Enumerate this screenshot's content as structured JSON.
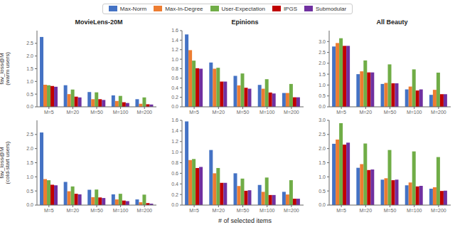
{
  "chart_data": [
    {
      "type": "bar",
      "title": "MovieLens-20M",
      "ylabel": "fav_loss@M\n(warm users)",
      "legend": "top",
      "grid": false,
      "categories": [
        "M=5",
        "M=20",
        "M=50",
        "M=100",
        "M=200"
      ],
      "series": [
        {
          "name": "Max-Norm",
          "color": "#4472c4",
          "values": [
            2.75,
            0.85,
            0.58,
            0.45,
            0.3
          ]
        },
        {
          "name": "Max-In-Degree",
          "color": "#ed7d31",
          "values": [
            0.87,
            0.5,
            0.3,
            0.23,
            0.12
          ]
        },
        {
          "name": "User-Expectation",
          "color": "#70ad47",
          "values": [
            0.85,
            0.68,
            0.57,
            0.43,
            0.37
          ]
        },
        {
          "name": "IPGS",
          "color": "#c00000",
          "values": [
            0.82,
            0.4,
            0.3,
            0.18,
            0.1
          ]
        },
        {
          "name": "Submodular",
          "color": "#7030a0",
          "values": [
            0.79,
            0.37,
            0.27,
            0.15,
            0.09
          ]
        }
      ],
      "ylim": [
        0,
        3.0
      ],
      "yticks": [
        {
          "value": 0,
          "label": "0.0"
        },
        0.5,
        {
          "value": 1,
          "label": "1.0"
        },
        1.5,
        {
          "value": 2,
          "label": "2.0"
        },
        2.5
      ]
    },
    {
      "type": "bar",
      "title": "Epinions",
      "grid": false,
      "categories": [
        "M=5",
        "M=20",
        "M=50",
        "M=100",
        "M=200"
      ],
      "series": [
        {
          "name": "Max-Norm",
          "color": "#4472c4",
          "values": [
            1.52,
            0.93,
            0.65,
            0.46,
            0.29
          ]
        },
        {
          "name": "Max-In-Degree",
          "color": "#ed7d31",
          "values": [
            1.19,
            0.8,
            0.45,
            0.38,
            0.29
          ]
        },
        {
          "name": "User-Expectation",
          "color": "#70ad47",
          "values": [
            0.97,
            0.82,
            0.7,
            0.58,
            0.48
          ]
        },
        {
          "name": "IPGS",
          "color": "#c00000",
          "values": [
            0.81,
            0.53,
            0.4,
            0.3,
            0.2
          ]
        },
        {
          "name": "Submodular",
          "color": "#7030a0",
          "values": [
            0.8,
            0.53,
            0.38,
            0.28,
            0.2
          ]
        }
      ],
      "ylim": [
        0,
        1.6
      ],
      "yticks": [
        {
          "value": 0,
          "label": "0.0"
        },
        0.2,
        0.4,
        0.6,
        0.8,
        {
          "value": 1,
          "label": "1.0"
        },
        1.2,
        1.4,
        1.6
      ]
    },
    {
      "type": "bar",
      "title": "All Beauty",
      "grid": false,
      "categories": [
        "M=5",
        "M=20",
        "M=50",
        "M=100",
        "M=200"
      ],
      "series": [
        {
          "name": "Max-Norm",
          "color": "#4472c4",
          "values": [
            2.77,
            1.5,
            1.05,
            0.8,
            0.55
          ]
        },
        {
          "name": "Max-In-Degree",
          "color": "#ed7d31",
          "values": [
            2.93,
            1.63,
            1.1,
            0.93,
            0.78
          ]
        },
        {
          "name": "User-Expectation",
          "color": "#70ad47",
          "values": [
            3.15,
            2.13,
            1.95,
            1.72,
            1.57
          ]
        },
        {
          "name": "IPGS",
          "color": "#c00000",
          "values": [
            2.8,
            1.58,
            1.08,
            0.75,
            0.58
          ]
        },
        {
          "name": "Submodular",
          "color": "#7030a0",
          "values": [
            2.8,
            1.58,
            1.08,
            0.8,
            0.58
          ]
        }
      ],
      "ylim": [
        0,
        3.5
      ],
      "yticks": [
        {
          "value": 0,
          "label": "0.0"
        },
        0.5,
        {
          "value": 1,
          "label": "1.0"
        },
        1.5,
        {
          "value": 2,
          "label": "2.0"
        },
        2.5,
        {
          "value": 3,
          "label": "3.0"
        }
      ]
    },
    {
      "type": "bar",
      "ylabel": "fav_loss@M\n(cold-start users)",
      "grid": false,
      "categories": [
        "M=5",
        "M=20",
        "M=50",
        "M=100",
        "M=200"
      ],
      "series": [
        {
          "name": "Max-Norm",
          "color": "#4472c4",
          "values": [
            2.57,
            0.82,
            0.54,
            0.38,
            0.2
          ]
        },
        {
          "name": "Max-In-Degree",
          "color": "#ed7d31",
          "values": [
            0.92,
            0.49,
            0.28,
            0.2,
            0.1
          ]
        },
        {
          "name": "User-Expectation",
          "color": "#70ad47",
          "values": [
            0.88,
            0.66,
            0.55,
            0.4,
            0.37
          ]
        },
        {
          "name": "IPGS",
          "color": "#c00000",
          "values": [
            0.72,
            0.4,
            0.27,
            0.16,
            0.07
          ]
        },
        {
          "name": "Submodular",
          "color": "#7030a0",
          "values": [
            0.7,
            0.38,
            0.25,
            0.14,
            0.05
          ]
        }
      ],
      "ylim": [
        0,
        3.0
      ],
      "yticks": [
        {
          "value": 0,
          "label": "0.0"
        },
        0.5,
        {
          "value": 1,
          "label": "1.0"
        },
        1.5,
        {
          "value": 2,
          "label": "2.0"
        },
        2.5
      ]
    },
    {
      "type": "bar",
      "xlabel": "# of selected items",
      "grid": false,
      "categories": [
        "M=5",
        "M=20",
        "M=50",
        "M=100",
        "M=200"
      ],
      "series": [
        {
          "name": "Max-Norm",
          "color": "#4472c4",
          "values": [
            1.58,
            1.04,
            0.6,
            0.38,
            0.25
          ]
        },
        {
          "name": "Max-In-Degree",
          "color": "#ed7d31",
          "values": [
            0.85,
            0.6,
            0.36,
            0.25,
            0.2
          ]
        },
        {
          "name": "User-Expectation",
          "color": "#70ad47",
          "values": [
            0.87,
            0.7,
            0.5,
            0.52,
            0.47
          ]
        },
        {
          "name": "IPGS",
          "color": "#c00000",
          "values": [
            0.7,
            0.42,
            0.27,
            0.19,
            0.12
          ]
        },
        {
          "name": "Submodular",
          "color": "#7030a0",
          "values": [
            0.72,
            0.42,
            0.28,
            0.19,
            0.12
          ]
        }
      ],
      "ylim": [
        0,
        1.6
      ],
      "yticks": [
        {
          "value": 0,
          "label": "0.0"
        },
        0.2,
        0.4,
        0.6,
        0.8,
        {
          "value": 1,
          "label": "1.0"
        },
        1.2,
        1.4,
        1.6
      ]
    },
    {
      "type": "bar",
      "grid": false,
      "categories": [
        "M=5",
        "M=20",
        "M=50",
        "M=100",
        "M=200"
      ],
      "series": [
        {
          "name": "Max-Norm",
          "color": "#4472c4",
          "values": [
            2.17,
            1.32,
            0.9,
            0.7,
            0.58
          ]
        },
        {
          "name": "Max-In-Degree",
          "color": "#ed7d31",
          "values": [
            2.32,
            1.45,
            0.95,
            0.8,
            0.63
          ]
        },
        {
          "name": "User-Expectation",
          "color": "#70ad47",
          "values": [
            2.9,
            2.18,
            1.95,
            1.9,
            1.7
          ]
        },
        {
          "name": "IPGS",
          "color": "#c00000",
          "values": [
            2.14,
            1.24,
            0.88,
            0.66,
            0.5
          ]
        },
        {
          "name": "Submodular",
          "color": "#7030a0",
          "values": [
            2.21,
            1.26,
            0.9,
            0.68,
            0.51
          ]
        }
      ],
      "ylim": [
        0,
        3.0
      ],
      "yticks": [
        {
          "value": 0,
          "label": "0.0"
        },
        0.5,
        {
          "value": 1,
          "label": "1.0"
        },
        1.5,
        {
          "value": 2,
          "label": "2.0"
        },
        2.5,
        {
          "value": 3,
          "label": "3.0"
        }
      ]
    }
  ]
}
